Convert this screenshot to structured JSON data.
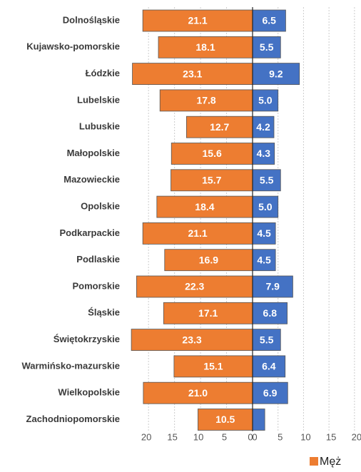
{
  "chart_data": {
    "type": "diverging-bar",
    "categories": [
      "Dolnośląskie",
      "Kujawsko-pomorskie",
      "Łódzkie",
      "Lubelskie",
      "Lubuskie",
      "Małopolskie",
      "Mazowieckie",
      "Opolskie",
      "Podkarpackie",
      "Podlaskie",
      "Pomorskie",
      "Śląskie",
      "Świętokrzyskie",
      "Warmińsko-mazurskie",
      "Wielkopolskie",
      "Zachodniopomorskie"
    ],
    "series": [
      {
        "name": "Męż",
        "color": "#ed7d31",
        "axis": "x",
        "values": [
          21.1,
          18.1,
          23.1,
          17.8,
          12.7,
          15.6,
          15.7,
          18.4,
          21.1,
          16.9,
          22.3,
          17.1,
          23.3,
          15.1,
          21.0,
          10.5
        ],
        "value_labels": [
          "21.1",
          "18.1",
          "23.1",
          "17.8",
          "12.7",
          "15.6",
          "15.7",
          "18.4",
          "21.1",
          "16.9",
          "22.3",
          "17.1",
          "23.3",
          "15.1",
          "21.0",
          "10.5"
        ]
      },
      {
        "color": "#4472c4",
        "axis": "x2",
        "values": [
          6.5,
          5.5,
          9.2,
          5.0,
          4.2,
          4.3,
          5.5,
          5.0,
          4.5,
          4.5,
          7.9,
          6.8,
          5.5,
          6.4,
          6.9,
          2.4
        ],
        "value_labels": [
          "6.5",
          "5.5",
          "9.2",
          "5.0",
          "4.2",
          "4.3",
          "5.5",
          "5.0",
          "4.5",
          "4.5",
          "7.9",
          "6.8",
          "5.5",
          "6.4",
          "6.9",
          null
        ]
      }
    ],
    "xlim": [
      0,
      24
    ],
    "xticks": [
      20,
      15,
      10,
      5,
      0
    ],
    "x2lim": [
      0,
      21
    ],
    "x2ticks": [
      0,
      5,
      10,
      15,
      20
    ],
    "grid": true
  }
}
